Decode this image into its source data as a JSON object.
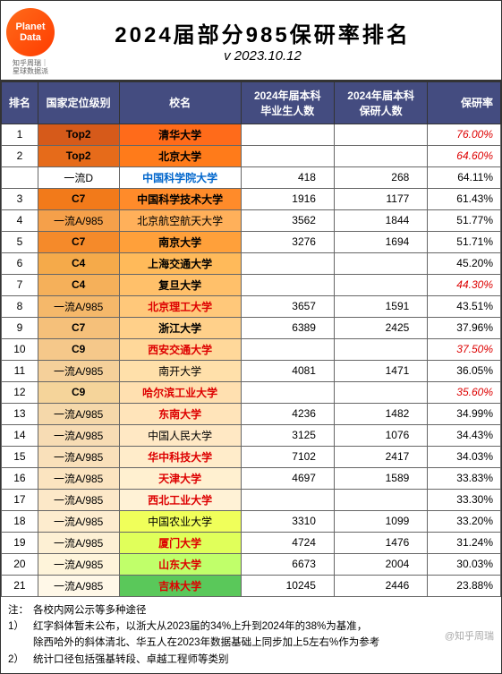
{
  "header": {
    "logoTop": "Planet",
    "logoBottom": "Data",
    "logoSub": "知乎周瑞｜\n星球数据派",
    "title": "2024届部分985保研率排名",
    "subtitle": "v 2023.10.12"
  },
  "columns": {
    "rank": "排名",
    "level": "国家定位级别",
    "name": "校名",
    "grad": "2024年届本科\n毕业生人数",
    "rec": "2024年届本科\n保研人数",
    "rate": "保研率"
  },
  "rows": [
    {
      "rank": "1",
      "level": "Top2",
      "name": "清华大学",
      "grad": "",
      "rec": "",
      "rate": "76.00%",
      "rankBg": "#fff",
      "levelBg": "#d65a1a",
      "nameBg": "#ff6b1a",
      "rateItalic": true,
      "bold": true
    },
    {
      "rank": "2",
      "level": "Top2",
      "name": "北京大学",
      "grad": "",
      "rec": "",
      "rate": "64.60%",
      "rankBg": "#fff",
      "levelBg": "#e66b1a",
      "nameBg": "#ff7b1a",
      "rateItalic": true,
      "bold": true
    },
    {
      "rank": "",
      "level": "一流D",
      "name": "中国科学院大学",
      "grad": "418",
      "rec": "268",
      "rate": "64.11%",
      "rankBg": "#fff",
      "levelBg": "#fff",
      "nameBg": "#fff",
      "nameColor": "blue"
    },
    {
      "rank": "3",
      "level": "C7",
      "name": "中国科学技术大学",
      "grad": "1916",
      "rec": "1177",
      "rate": "61.43%",
      "rankBg": "#fff",
      "levelBg": "#f27a1a",
      "nameBg": "#ff8b2a",
      "bold": true
    },
    {
      "rank": "4",
      "level": "一流A/985",
      "name": "北京航空航天大学",
      "grad": "3562",
      "rec": "1844",
      "rate": "51.77%",
      "rankBg": "#fff",
      "levelBg": "#f5a04a",
      "nameBg": "#ffb05a"
    },
    {
      "rank": "5",
      "level": "C7",
      "name": "南京大学",
      "grad": "3276",
      "rec": "1694",
      "rate": "51.71%",
      "rankBg": "#fff",
      "levelBg": "#f58a2a",
      "nameBg": "#ffa03a",
      "bold": true
    },
    {
      "rank": "6",
      "level": "C4",
      "name": "上海交通大学",
      "grad": "",
      "rec": "",
      "rate": "45.20%",
      "rankBg": "#fff",
      "levelBg": "#f5aa4a",
      "nameBg": "#ffba5a",
      "bold": true
    },
    {
      "rank": "7",
      "level": "C4",
      "name": "复旦大学",
      "grad": "",
      "rec": "",
      "rate": "44.30%",
      "rankBg": "#fff",
      "levelBg": "#f5b05a",
      "nameBg": "#ffc06a",
      "rateItalic": true,
      "bold": true
    },
    {
      "rank": "8",
      "level": "一流A/985",
      "name": "北京理工大学",
      "grad": "3657",
      "rec": "1591",
      "rate": "43.51%",
      "rankBg": "#fff",
      "levelBg": "#f5b86a",
      "nameBg": "#ffc87a",
      "nameRed": true
    },
    {
      "rank": "9",
      "level": "C7",
      "name": "浙江大学",
      "grad": "6389",
      "rec": "2425",
      "rate": "37.96%",
      "rankBg": "#fff",
      "levelBg": "#f5c07a",
      "nameBg": "#ffd08a",
      "bold": true
    },
    {
      "rank": "10",
      "level": "C9",
      "name": "西安交通大学",
      "grad": "",
      "rec": "",
      "rate": "37.50%",
      "rankBg": "#fff",
      "levelBg": "#f5c88a",
      "nameBg": "#ffd89a",
      "nameRed": true,
      "rateItalic": true,
      "bold": true
    },
    {
      "rank": "11",
      "level": "一流A/985",
      "name": "南开大学",
      "grad": "4081",
      "rec": "1471",
      "rate": "36.05%",
      "rankBg": "#fff",
      "levelBg": "#f5d09a",
      "nameBg": "#ffe0aa"
    },
    {
      "rank": "12",
      "level": "C9",
      "name": "哈尔滨工业大学",
      "grad": "",
      "rec": "",
      "rate": "35.60%",
      "rankBg": "#fff",
      "levelBg": "#f5d49a",
      "nameBg": "#ffe0b0",
      "nameRed": true,
      "rateItalic": true,
      "bold": true
    },
    {
      "rank": "13",
      "level": "一流A/985",
      "name": "东南大学",
      "grad": "4236",
      "rec": "1482",
      "rate": "34.99%",
      "rankBg": "#fff",
      "levelBg": "#f5d8aa",
      "nameBg": "#ffe4ba",
      "nameRed": true
    },
    {
      "rank": "14",
      "level": "一流A/985",
      "name": "中国人民大学",
      "grad": "3125",
      "rec": "1076",
      "rate": "34.43%",
      "rankBg": "#fff",
      "levelBg": "#f7dcb4",
      "nameBg": "#ffe8c4"
    },
    {
      "rank": "15",
      "level": "一流A/985",
      "name": "华中科技大学",
      "grad": "7102",
      "rec": "2417",
      "rate": "34.03%",
      "rankBg": "#fff",
      "levelBg": "#f9e0ba",
      "nameBg": "#ffecca",
      "nameRed": true
    },
    {
      "rank": "16",
      "level": "一流A/985",
      "name": "天津大学",
      "grad": "4697",
      "rec": "1589",
      "rate": "33.83%",
      "rankBg": "#fff",
      "levelBg": "#fbe4c0",
      "nameBg": "#fff0d0",
      "nameRed": true
    },
    {
      "rank": "17",
      "level": "一流A/985",
      "name": "西北工业大学",
      "grad": "",
      "rec": "",
      "rate": "33.30%",
      "rankBg": "#fff",
      "levelBg": "#fce8c8",
      "nameBg": "#fff2d6",
      "nameRed": true
    },
    {
      "rank": "18",
      "level": "一流A/985",
      "name": "中国农业大学",
      "grad": "3310",
      "rec": "1099",
      "rate": "33.20%",
      "rankBg": "#fff",
      "levelBg": "#fdecce",
      "nameBg": "#f0ff5a"
    },
    {
      "rank": "19",
      "level": "一流A/985",
      "name": "厦门大学",
      "grad": "4724",
      "rec": "1476",
      "rate": "31.24%",
      "rankBg": "#fff",
      "levelBg": "#fdf0d4",
      "nameBg": "#e0ff5a",
      "nameRed": true
    },
    {
      "rank": "20",
      "level": "一流A/985",
      "name": "山东大学",
      "grad": "6673",
      "rec": "2004",
      "rate": "30.03%",
      "rankBg": "#fff",
      "levelBg": "#fef4da",
      "nameBg": "#c0ff6a",
      "nameRed": true
    },
    {
      "rank": "21",
      "level": "一流A/985",
      "name": "吉林大学",
      "grad": "10245",
      "rec": "2446",
      "rate": "23.88%",
      "rankBg": "#fff",
      "levelBg": "#fff8e8",
      "nameBg": "#5ac85a",
      "nameRed": true
    }
  ],
  "notes": {
    "l0lbl": "注：",
    "l0": "各校内网公示等多种途径",
    "l1lbl": "1）",
    "l1a": "红字斜体暂未公布，以浙大从2023届的34%上升到2024年的38%为基准，",
    "l1b": "除西哈外的斜体清北、华五人在2023年数据基础上同步加上5左右%作为参考",
    "l2lbl": "2）",
    "l2": "统计口径包括强基转段、卓越工程师等类别",
    "wm": "@知乎周瑞"
  }
}
